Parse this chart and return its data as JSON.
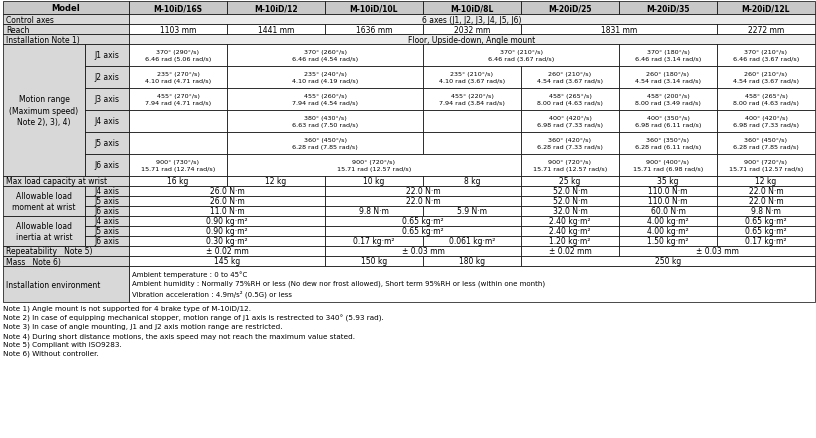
{
  "model_names": [
    "M-10iD/16S",
    "M-10iD/12",
    "M-10iD/10L",
    "M-10iD/8L",
    "M-20iD/25",
    "M-20iD/35",
    "M-20iD/12L"
  ],
  "header_bg": "#c8c8c8",
  "gray_bg": "#d8d8d8",
  "white_bg": "#ffffff",
  "span_bg": "#ececec",
  "notes": [
    "Note 1) Angle mount is not supported for 4 brake type of M-10iD/12.",
    "Note 2) In case of equipping mechanical stopper, motion range of J1 axis is restrected to 340° (5.93 rad).",
    "Note 3) In case of angle mounting, J1 and J2 axis motion range are restricted.",
    "Note 4) During short distance motions, the axis speed may not reach the maximum value stated.",
    "Note 5) Compliant with ISO9283.",
    "Note 6) Without controller."
  ]
}
